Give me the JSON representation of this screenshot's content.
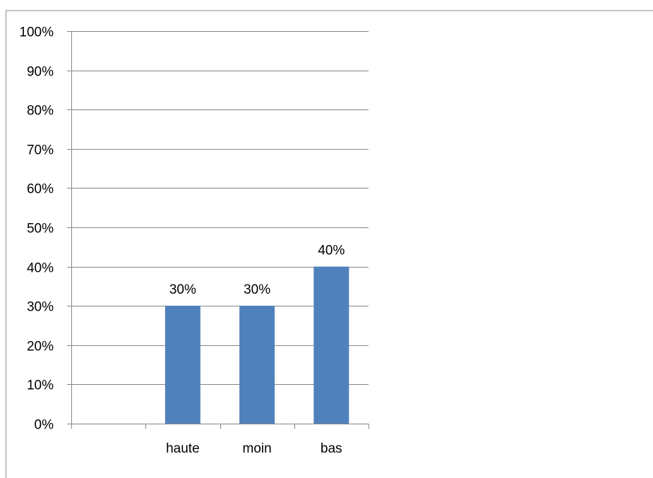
{
  "chart_data": {
    "type": "bar",
    "categories": [
      "",
      "haute",
      "moin",
      "bas"
    ],
    "values": [
      null,
      30,
      30,
      40
    ],
    "data_labels": [
      "",
      "30%",
      "30%",
      "40%"
    ],
    "title": "",
    "xlabel": "",
    "ylabel": "",
    "ylim": [
      0,
      100
    ],
    "y_ticks": [
      0,
      10,
      20,
      30,
      40,
      50,
      60,
      70,
      80,
      90,
      100
    ],
    "y_tick_labels": [
      "0%",
      "10%",
      "20%",
      "30%",
      "40%",
      "50%",
      "60%",
      "70%",
      "80%",
      "90%",
      "100%"
    ],
    "y_unit": "%",
    "grid": true,
    "legend": false,
    "bar_color": "#4f81bd",
    "gridline_color": "#868686",
    "frame_color": "#8c8c8c"
  }
}
